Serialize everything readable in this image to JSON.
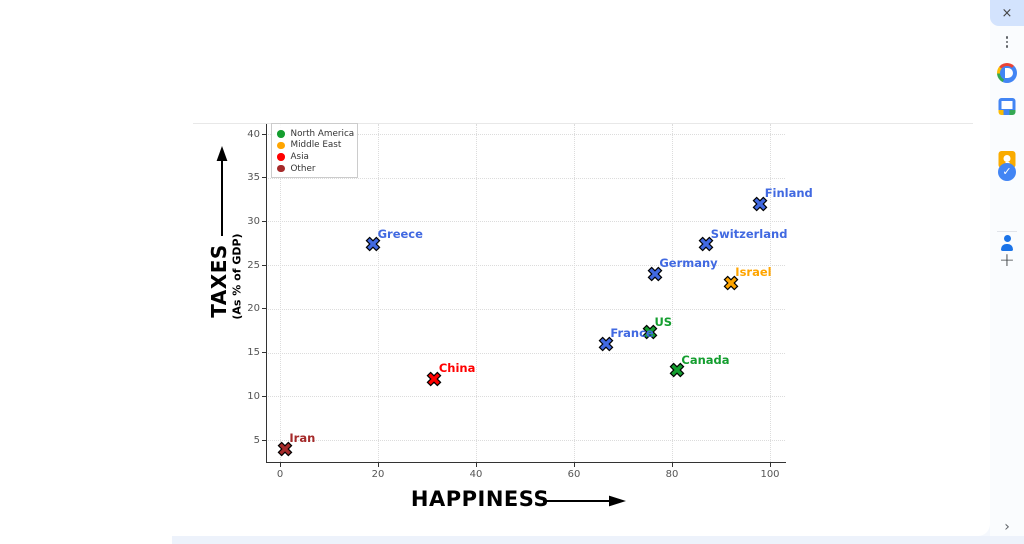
{
  "chart_data": {
    "type": "scatter",
    "title": "",
    "xlabel": "HAPPINESS",
    "ylabel": "TAXES",
    "ylabel_sub": "(As % of GDP)",
    "xlim": [
      -3,
      103
    ],
    "ylim": [
      2.5,
      41.3
    ],
    "xticks": [
      0,
      20,
      40,
      60,
      80,
      100
    ],
    "yticks": [
      5,
      10,
      15,
      20,
      25,
      30,
      35,
      40
    ],
    "grid": true,
    "grid_style": "dotted",
    "marker": "X",
    "legend_position": "upper left",
    "legend": [
      {
        "label": "North America",
        "color": "#149E2F"
      },
      {
        "label": "Middle East",
        "color": "#FFA500"
      },
      {
        "label": "Asia",
        "color": "#FF0000"
      },
      {
        "label": "Other",
        "color": "#A52A2A"
      }
    ],
    "points": [
      {
        "label": "Finland",
        "x": 98,
        "y": 32,
        "color": "#4169E1"
      },
      {
        "label": "Switzerland",
        "x": 87,
        "y": 27.4,
        "color": "#4169E1"
      },
      {
        "label": "Greece",
        "x": 19,
        "y": 27.4,
        "color": "#4169E1"
      },
      {
        "label": "Germany",
        "x": 76.5,
        "y": 24,
        "color": "#4169E1"
      },
      {
        "label": "Israel",
        "x": 92,
        "y": 23,
        "color": "#FFA500"
      },
      {
        "label": "US",
        "x": 75.5,
        "y": 17.3,
        "color": "#149E2F"
      },
      {
        "label": "France",
        "x": 66.5,
        "y": 16,
        "color": "#4169E1"
      },
      {
        "label": "Canada",
        "x": 81,
        "y": 13,
        "color": "#149E2F"
      },
      {
        "label": "China",
        "x": 31.5,
        "y": 12,
        "color": "#FF0000"
      },
      {
        "label": "Iran",
        "x": 1,
        "y": 4,
        "color": "#A52A2A"
      }
    ]
  },
  "side_panel": {
    "icons": [
      "close-icon",
      "kebab-menu-icon",
      "round-multicolor-app-icon",
      "calendar-icon",
      "keep-notes-icon",
      "tasks-icon",
      "contacts-icon",
      "add-icon",
      "chevron-right-icon"
    ],
    "tasks_check_glyph": "✓",
    "close_glyph": "×",
    "plus_glyph": "+",
    "chevron_glyph": "›"
  },
  "theme": {
    "close_button_bg": "#D3E3FD",
    "bottom_band_color": "#EDF2FB",
    "grid_color": "#DCDCDC",
    "spine_color": "#333333",
    "tick_label_color": "#555555",
    "marker_edge_color": "#000000"
  }
}
